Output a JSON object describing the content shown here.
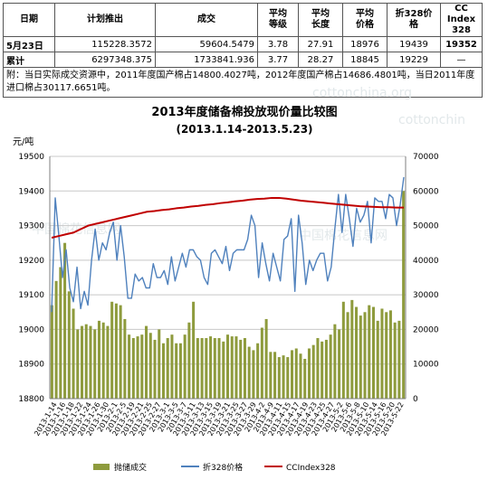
{
  "table": {
    "headers": [
      "日期",
      "计划推出",
      "成交",
      "平均\n等级",
      "平均\n长度",
      "平均\n价格",
      "折328价\n格",
      "CC Index\n328"
    ],
    "rows": [
      [
        "5月23日",
        "115228.3572",
        "59604.5479",
        "3.78",
        "27.91",
        "18976",
        "19439",
        "19352"
      ],
      [
        "累计",
        "6297348.375",
        "1733841.936",
        "3.77",
        "28.27",
        "18845",
        "19229",
        "—"
      ]
    ],
    "note": "附：当日实际成交资源中，2011年度国产棉占14800.4027吨，2012年度国产棉占14686.4801吨，当日2011年度进口棉占30117.6651吨。"
  },
  "watermarks": [
    "cottonchina.org",
    "cottonchin",
    "中国棉花信息网",
    "中国棉花信息网"
  ],
  "colors": {
    "bar": "#8e9b3d",
    "price328": "#4f81bd",
    "ccindex": "#c00000",
    "grid": "#c8c8c8"
  },
  "chart_data": {
    "type": "bar",
    "title": "2013年度储备棉投放现价量比较图",
    "subtitle": "(2013.1.14-2013.5.23)",
    "ylabel": "元/吨",
    "ylim": [
      18800,
      19500
    ],
    "y_ticks": [
      18800,
      18900,
      19000,
      19100,
      19200,
      19300,
      19400,
      19500
    ],
    "y2lim": [
      0,
      70000
    ],
    "y2_ticks": [
      0,
      10000,
      20000,
      30000,
      40000,
      50000,
      60000,
      70000
    ],
    "grid": true,
    "legend_position": "bottom",
    "x_labels": [
      "2013-1-14",
      "2013-1-16",
      "2013-1-18",
      "2013-1-22",
      "2013-1-24",
      "2013-1-26",
      "2013-1-30",
      "2013-2-1",
      "2013-2-5",
      "2013-2-19",
      "2013-2-21",
      "2013-2-25",
      "2013-2-27",
      "2013-3-1",
      "2013-3-5",
      "2013-3-7",
      "2013-3-11",
      "2013-3-13",
      "2013-3-15",
      "2013-3-19",
      "2013-3-21",
      "2013-3-25",
      "2013-3-27",
      "2013-3-29",
      "2013-4-2",
      "2013-4-9",
      "2013-4-11",
      "2013-4-15",
      "2013-4-17",
      "2013-4-19",
      "2013-4-23",
      "2013-4-25",
      "2013-4-27",
      "2013-5-2",
      "2013-5-6",
      "2013-5-8",
      "2013-5-10",
      "2013-5-14",
      "2013-5-16",
      "2013-5-20",
      "2013-5-22"
    ],
    "series": [
      {
        "name": "抛储成交",
        "axis": "right",
        "type": "bar",
        "values": [
          27000,
          34000,
          38000,
          45000,
          31000,
          26000,
          20000,
          21000,
          21500,
          21000,
          20000,
          22500,
          22000,
          21000,
          28000,
          27500,
          27000,
          23000,
          18500,
          17500,
          18000,
          18500,
          21000,
          19000,
          17000,
          20000,
          16000,
          17500,
          18500,
          16000,
          16000,
          18500,
          22000,
          28000,
          17500,
          17500,
          17500,
          18000,
          17500,
          17500,
          16500,
          18500,
          18000,
          18000,
          17000,
          17500,
          15000,
          14000,
          16000,
          20500,
          23000,
          13500,
          13500,
          12000,
          12500,
          12000,
          14000,
          14500,
          13000,
          11500,
          14500,
          15500,
          17500,
          16500,
          17000,
          18500,
          21500,
          20000,
          28000,
          25000,
          28500,
          26500,
          24000,
          25000,
          27000,
          26500,
          22500,
          26000,
          25000,
          25500,
          22000,
          22500,
          60000
        ]
      },
      {
        "name": "折328价格",
        "axis": "left",
        "type": "line",
        "values": [
          19050,
          19380,
          19270,
          19150,
          19230,
          19120,
          19080,
          19180,
          19060,
          19110,
          19070,
          19200,
          19290,
          19200,
          19250,
          19230,
          19280,
          19310,
          19200,
          19300,
          19210,
          19090,
          19090,
          19160,
          19140,
          19150,
          19120,
          19120,
          19190,
          19150,
          19150,
          19170,
          19130,
          19210,
          19140,
          19180,
          19220,
          19180,
          19230,
          19230,
          19210,
          19200,
          19150,
          19130,
          19220,
          19230,
          19210,
          19190,
          19240,
          19170,
          19220,
          19230,
          19230,
          19230,
          19260,
          19330,
          19300,
          19150,
          19250,
          19190,
          19140,
          19220,
          19180,
          19140,
          19260,
          19270,
          19320,
          19110,
          19330,
          19250,
          19130,
          19200,
          19170,
          19200,
          19220,
          19220,
          19140,
          19180,
          19290,
          19390,
          19280,
          19390,
          19320,
          19240,
          19350,
          19310,
          19330,
          19370,
          19250,
          19380,
          19370,
          19370,
          19320,
          19390,
          19380,
          19300,
          19360,
          19440
        ]
      },
      {
        "name": "CCIndex328",
        "axis": "left",
        "type": "line",
        "values": [
          19265,
          19270,
          19275,
          19280,
          19290,
          19300,
          19305,
          19310,
          19315,
          19320,
          19325,
          19330,
          19335,
          19340,
          19342,
          19345,
          19347,
          19350,
          19352,
          19355,
          19357,
          19360,
          19362,
          19365,
          19367,
          19370,
          19372,
          19375,
          19377,
          19378,
          19380,
          19380,
          19378,
          19375,
          19372,
          19370,
          19368,
          19366,
          19364,
          19362,
          19360,
          19358,
          19356,
          19355,
          19354,
          19353,
          19353,
          19352,
          19352
        ]
      }
    ]
  }
}
